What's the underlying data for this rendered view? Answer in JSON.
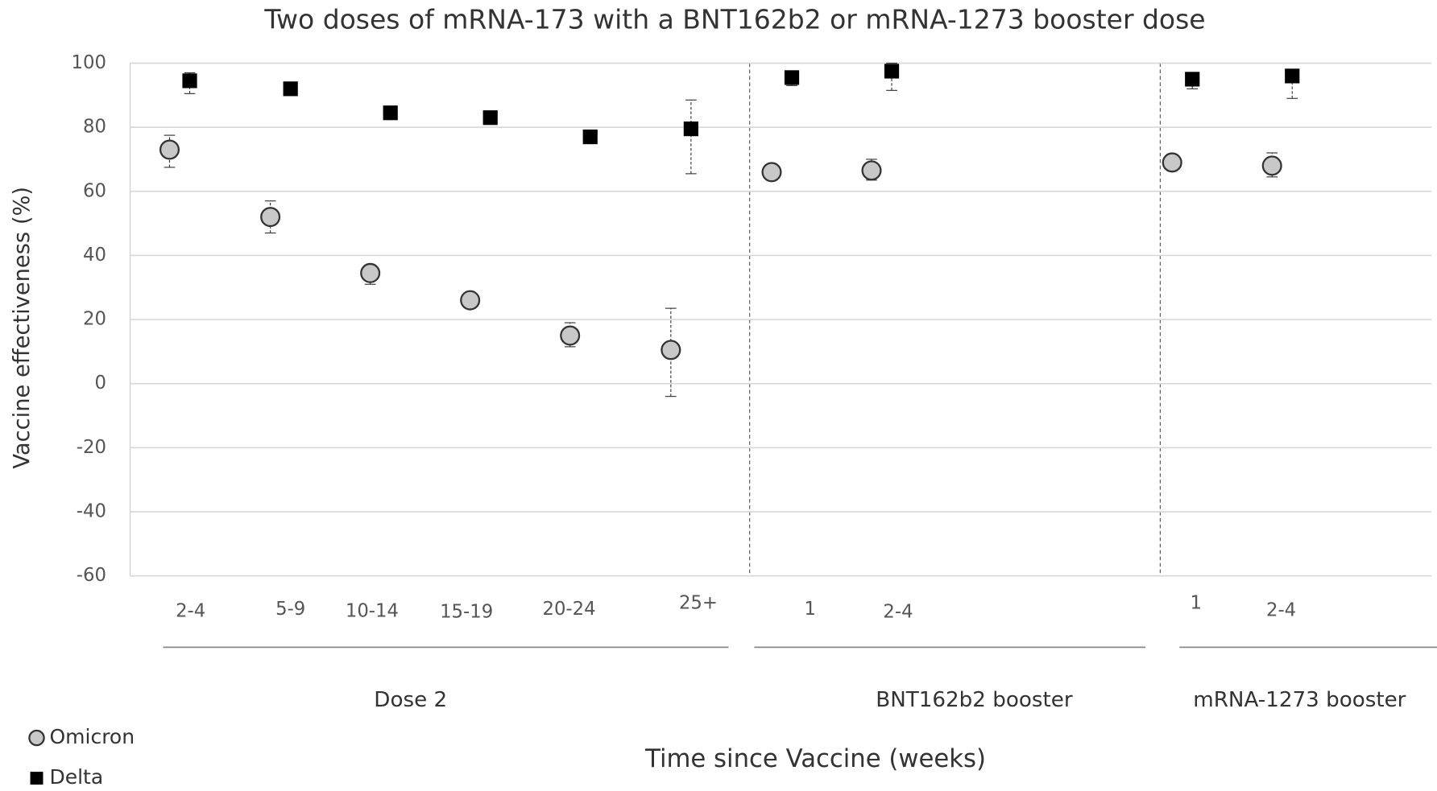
{
  "chart_data": {
    "type": "scatter",
    "title": "Two doses of mRNA-173 with a BNT162b2 or mRNA-1273 booster dose",
    "x_label": "Time since Vaccine (weeks)",
    "y_label": "Vaccine effectiveness (%)",
    "categories": [
      "2-4",
      "5-9",
      "10-14",
      "15-19",
      "20-24",
      "25+",
      "1",
      "2-4",
      "1",
      "2-4"
    ],
    "groups": [
      {
        "name": "Dose 2",
        "size": 6
      },
      {
        "name": "BNT162b2 booster",
        "size": 2
      },
      {
        "name": "mRNA-1273 booster",
        "size": 2
      }
    ],
    "ylim": [
      -60,
      100
    ],
    "yticks": [
      -60,
      -40,
      -20,
      0,
      20,
      40,
      60,
      80,
      100
    ],
    "grid": true,
    "series": [
      {
        "name": "Omicron",
        "color": "#c8c8c8",
        "marker": "circle",
        "values": [
          73,
          52,
          34.5,
          26,
          15,
          10.5,
          66,
          66.5,
          69,
          68
        ],
        "lower": [
          67.5,
          47,
          31,
          null,
          11.5,
          -4,
          null,
          63.5,
          null,
          64.5
        ],
        "upper": [
          77.5,
          57,
          37,
          null,
          19,
          23.5,
          null,
          70,
          null,
          72
        ]
      },
      {
        "name": "Delta",
        "color": "#000000",
        "marker": "square",
        "values": [
          94.5,
          92,
          84.5,
          83,
          77,
          79.5,
          95.5,
          97.5,
          95,
          96
        ],
        "lower": [
          90.5,
          null,
          null,
          null,
          null,
          65.5,
          93,
          91.5,
          92,
          89
        ],
        "upper": [
          97,
          null,
          null,
          null,
          null,
          88.5,
          97,
          100,
          97,
          97
        ]
      }
    ]
  }
}
